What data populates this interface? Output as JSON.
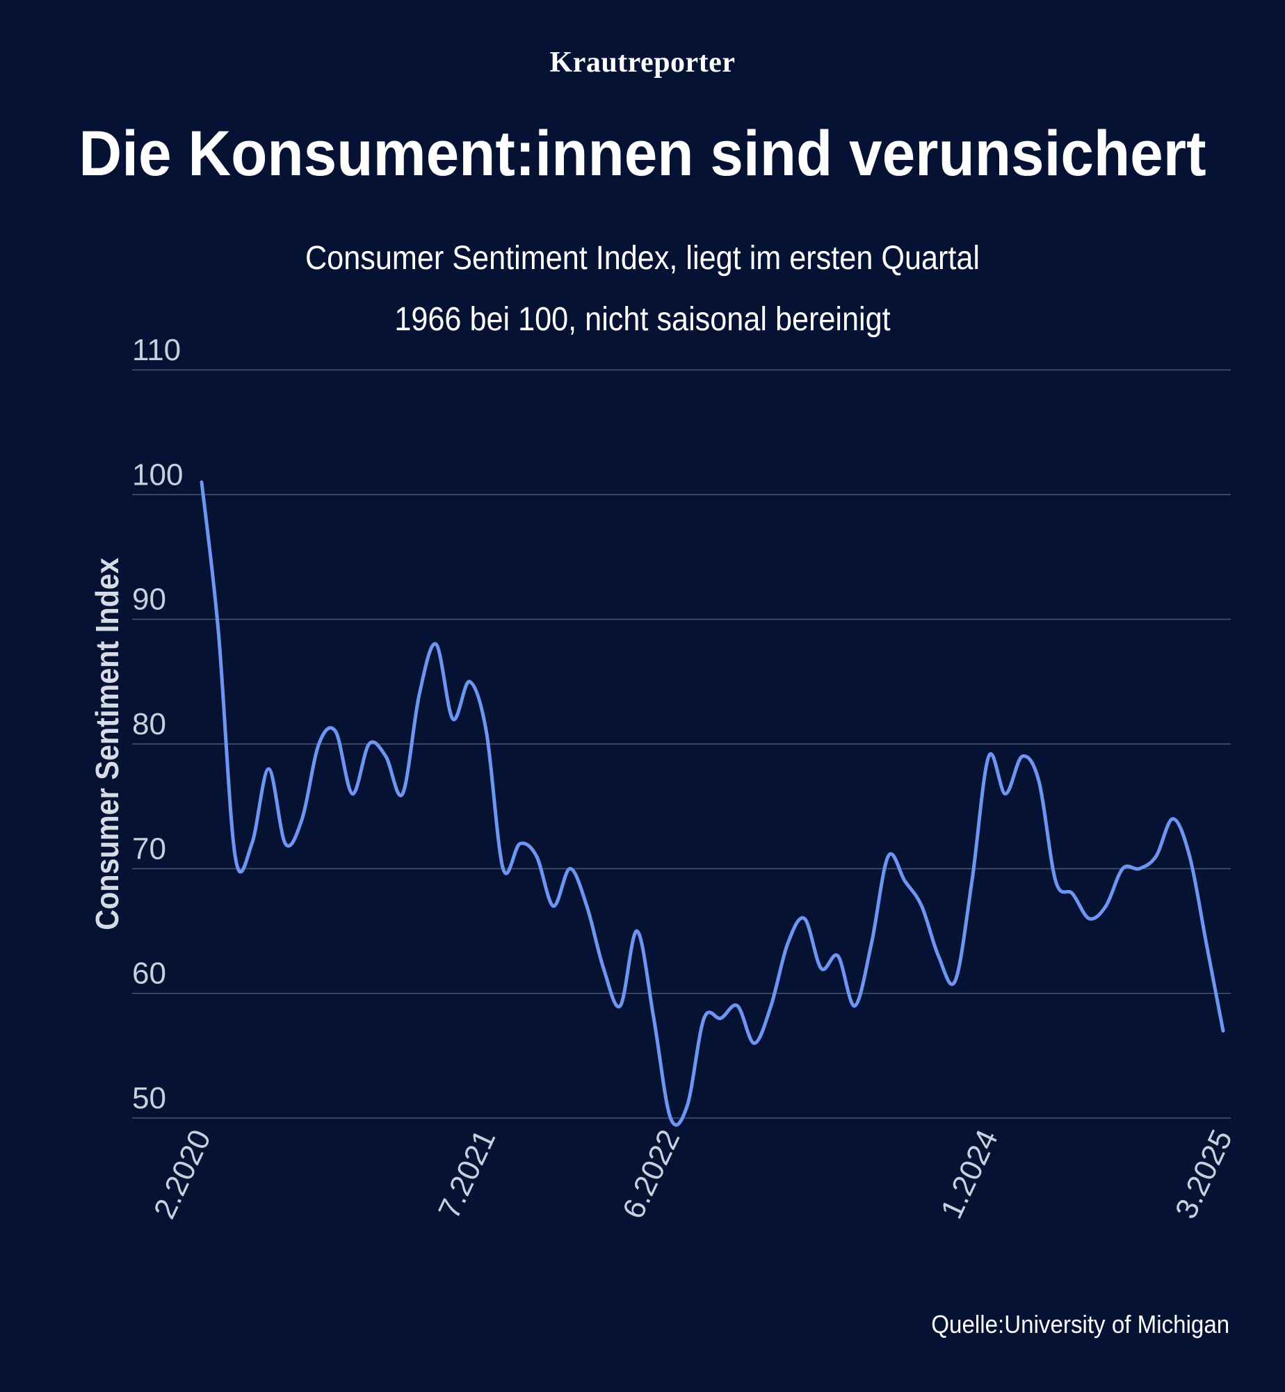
{
  "brand": "Krautreporter",
  "title": "Die Konsument:innen sind verunsichert",
  "subtitle_line1": "Consumer Sentiment Index, liegt im ersten Quartal",
  "subtitle_line2": "1966 bei 100, nicht saisonal bereinigt",
  "source": "Quelle:University of Michigan",
  "colors": {
    "background": "#061233",
    "line": "#6f95f2",
    "grid": "#4a5670",
    "text": "#ffffff",
    "tick": "#c9cfdc"
  },
  "chart_data": {
    "type": "line",
    "title": "Die Konsument:innen sind verunsichert",
    "xlabel": "",
    "ylabel": "Consumer Sentiment Index",
    "ylim": [
      50,
      110
    ],
    "yticks": [
      "50",
      "60",
      "70",
      "80",
      "90",
      "100",
      "110"
    ],
    "xtick_labels": [
      "2.2020",
      "7.2021",
      "6.2022",
      "1.2024",
      "3.2025"
    ],
    "grid": true,
    "series": [
      {
        "x": [
          "2.2020",
          "3.2020",
          "4.2020",
          "5.2020",
          "6.2020",
          "7.2020",
          "8.2020",
          "9.2020",
          "10.2020",
          "11.2020",
          "12.2020",
          "1.2021",
          "2.2021",
          "3.2021",
          "4.2021",
          "5.2021",
          "6.2021",
          "7.2021",
          "8.2021",
          "9.2021",
          "10.2021",
          "11.2021",
          "12.2021",
          "1.2022",
          "2.2022",
          "3.2022",
          "4.2022",
          "5.2022",
          "6.2022",
          "7.2022",
          "8.2022",
          "9.2022",
          "10.2022",
          "11.2022",
          "12.2022",
          "1.2023",
          "2.2023",
          "3.2023",
          "4.2023",
          "5.2023",
          "6.2023",
          "7.2023",
          "8.2023",
          "9.2023",
          "10.2023",
          "11.2023",
          "12.2023",
          "1.2024",
          "2.2024",
          "3.2024",
          "4.2024",
          "5.2024",
          "6.2024",
          "7.2024",
          "8.2024",
          "9.2024",
          "10.2024",
          "11.2024",
          "12.2024",
          "1.2025",
          "2.2025",
          "3.2025"
        ],
        "values": [
          101,
          89,
          71,
          72,
          78,
          72,
          74,
          80,
          81,
          76,
          80,
          79,
          76,
          84,
          88,
          82,
          85,
          81,
          70,
          72,
          71,
          67,
          70,
          67,
          62,
          59,
          65,
          58,
          50,
          51,
          58,
          58,
          59,
          56,
          59,
          64,
          66,
          62,
          63,
          59,
          64,
          71,
          69,
          67,
          63,
          61,
          69,
          79,
          76,
          79,
          77,
          69,
          68,
          66,
          67,
          70,
          70,
          71,
          74,
          71,
          64,
          57
        ]
      }
    ]
  }
}
